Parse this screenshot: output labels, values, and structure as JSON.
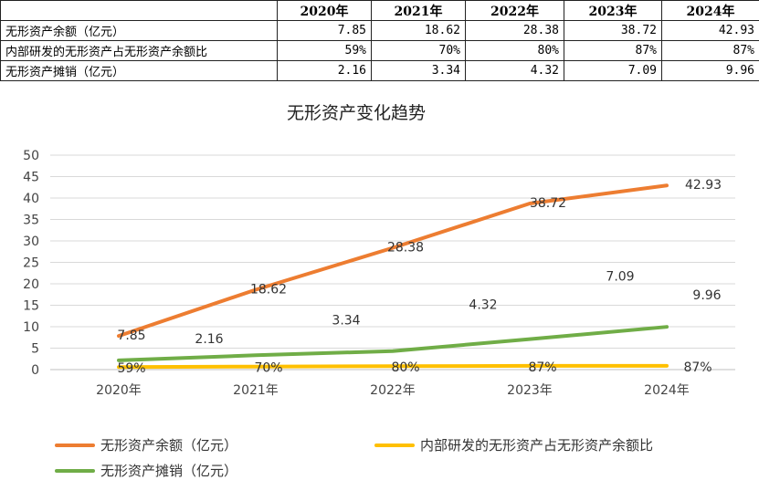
{
  "table": {
    "headers": [
      "",
      "2020年",
      "2021年",
      "2022年",
      "2023年",
      "2024年"
    ],
    "rows": [
      {
        "label": "无形资产余额（亿元）",
        "values": [
          "7.85",
          "18.62",
          "28.38",
          "38.72",
          "42.93"
        ]
      },
      {
        "label": "内部研发的无形资产占无形资产余额比",
        "values": [
          "59%",
          "70%",
          "80%",
          "87%",
          "87%"
        ]
      },
      {
        "label": "无形资产摊销（亿元）",
        "values": [
          "2.16",
          "3.34",
          "4.32",
          "7.09",
          "9.96"
        ]
      }
    ]
  },
  "chart_data": {
    "type": "line",
    "title": "无形资产变化趋势",
    "categories": [
      "2020年",
      "2021年",
      "2022年",
      "2023年",
      "2024年"
    ],
    "ylim": [
      0,
      50
    ],
    "yticks": [
      0,
      5,
      10,
      15,
      20,
      25,
      30,
      35,
      40,
      45,
      50
    ],
    "grid": true,
    "legend_position": "bottom",
    "series": [
      {
        "name": "无形资产余额（亿元）",
        "values": [
          7.85,
          18.62,
          28.38,
          38.72,
          42.93
        ],
        "labels": [
          "7.85",
          "18.62",
          "28.38",
          "38.72",
          "42.93"
        ],
        "color": "#ED7D31"
      },
      {
        "name": "内部研发的无形资产占无形资产余额比",
        "values": [
          0.59,
          0.7,
          0.8,
          0.87,
          0.87
        ],
        "labels": [
          "59%",
          "70%",
          "80%",
          "87%",
          "87%"
        ],
        "color": "#FFC000"
      },
      {
        "name": "无形资产摊销（亿元）",
        "values": [
          2.16,
          3.34,
          4.32,
          7.09,
          9.96
        ],
        "labels": [
          "2.16",
          "3.34",
          "4.32",
          "7.09",
          "9.96"
        ],
        "color": "#70AD47"
      }
    ]
  }
}
